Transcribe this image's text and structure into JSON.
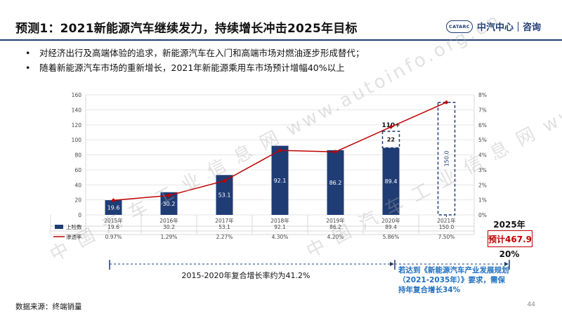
{
  "slide": {
    "title": "预测1：2021新能源汽车继续发力，持续增长冲击2025年目标",
    "logo": {
      "badge": "CATARC",
      "text1": "中汽中心",
      "text2": "咨询"
    },
    "bullets": [
      "对经济出行及高端体验的追求，新能源汽车在入门和高端市场对燃油逐步形成替代；",
      "随着新能源汽车市场的重新增长，2021年新能源乘用车市场预计增幅40%以上"
    ],
    "target": {
      "year": "2025年",
      "value": "预计467.9",
      "pct": "20%"
    },
    "cagr_text": "2015-2020年复合增长率约为41.2%",
    "requirement_text": "若达到《新能源汽车产业发展规划（2021-2035年）》要求，需保持年复合增长34%",
    "source": "数据来源：终端销量",
    "page": "44",
    "watermark": "中 国 汽 车 工 业 信 息 网   www.autoinfo.org.cn"
  },
  "chart_data": {
    "type": "bar",
    "categories": [
      "2015年",
      "2016年",
      "2017年",
      "2018年",
      "2019年",
      "2020年",
      "2021年"
    ],
    "series": [
      {
        "name": "上险数",
        "type": "bar",
        "values": [
          19.6,
          30.2,
          53.1,
          92.1,
          86.2,
          89.4,
          150.0
        ],
        "value_labels": [
          "19.6",
          "30.2",
          "53.1",
          "92.1",
          "86.2",
          "89.4",
          "150.0"
        ],
        "forecast_index": 6
      },
      {
        "name": "渗透率",
        "type": "line",
        "axis": "right",
        "values": [
          0.97,
          1.29,
          2.27,
          4.3,
          4.2,
          5.86,
          7.5
        ],
        "value_labels": [
          "0.97%",
          "1.29%",
          "2.27%",
          "4.30%",
          "4.20%",
          "5.86%",
          "7.50%"
        ]
      }
    ],
    "extra_2020": {
      "value": 22,
      "label": "22",
      "total_label": "110+"
    },
    "ylim": [
      0,
      160
    ],
    "yticks": [
      0,
      20,
      40,
      60,
      80,
      100,
      120,
      140,
      160
    ],
    "y2lim": [
      0,
      8
    ],
    "y2ticks": [
      "0%",
      "1%",
      "2%",
      "3%",
      "4%",
      "5%",
      "6%",
      "7%",
      "8%"
    ],
    "grid": true,
    "colors": {
      "bar": "#1f3c74",
      "line": "#c00000",
      "dashed": "#1f3c74"
    }
  }
}
